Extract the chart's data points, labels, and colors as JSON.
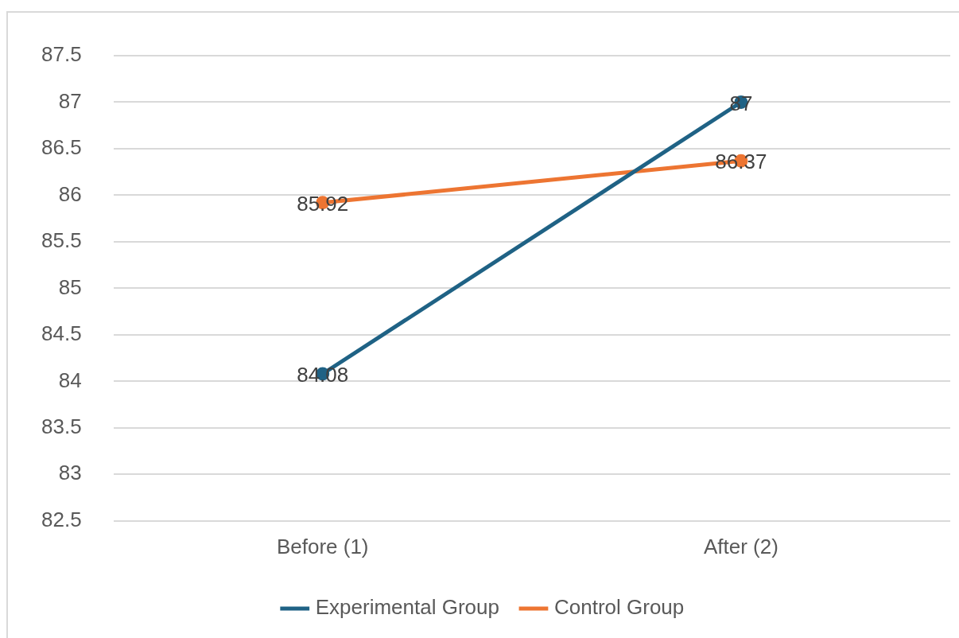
{
  "chart_data": {
    "type": "line",
    "categories": [
      "Before (1)",
      "After (2)"
    ],
    "series": [
      {
        "name": "Experimental Group",
        "color": "#1f6285",
        "values": [
          84.08,
          87
        ]
      },
      {
        "name": "Control Group",
        "color": "#ed7532",
        "values": [
          85.92,
          86.37
        ]
      }
    ],
    "ylim": [
      82.5,
      87.5
    ],
    "yticks": [
      82.5,
      83,
      83.5,
      84,
      84.5,
      85,
      85.5,
      86,
      86.5,
      87,
      87.5
    ],
    "grid": "y",
    "legend": "bottom",
    "marker": "circle",
    "data_labels": true
  }
}
